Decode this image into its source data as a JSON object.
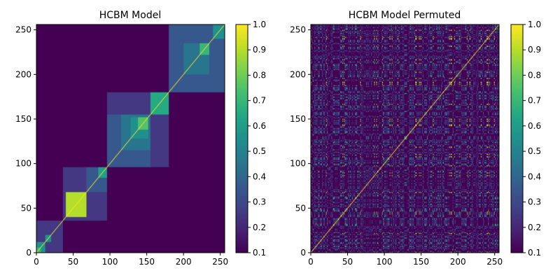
{
  "chart_data": [
    {
      "type": "heatmap",
      "title": "HCBM Model",
      "xlim": [
        0,
        256
      ],
      "ylim": [
        0,
        256
      ],
      "xticks": [
        "0",
        "50",
        "100",
        "150",
        "200",
        "250"
      ],
      "yticks": [
        "0",
        "50",
        "100",
        "150",
        "200",
        "250"
      ],
      "colorbar": {
        "min": 0.1,
        "max": 1.0,
        "ticks": [
          "0.1",
          "0.2",
          "0.3",
          "0.4",
          "0.5",
          "0.6",
          "0.7",
          "0.8",
          "0.9",
          "1.0"
        ]
      },
      "colormap": "viridis",
      "diagonal_value": 1.0,
      "background_value": 0.1,
      "blocks": [
        {
          "start": 0,
          "end": 36,
          "value": 0.25
        },
        {
          "start": 0,
          "end": 12,
          "value": 0.55
        },
        {
          "start": 0,
          "end": 6,
          "value": 0.7
        },
        {
          "start": 12,
          "end": 20,
          "value": 0.55
        },
        {
          "start": 36,
          "end": 96,
          "value": 0.25
        },
        {
          "start": 40,
          "end": 68,
          "value": 0.9
        },
        {
          "start": 68,
          "end": 96,
          "value": 0.35
        },
        {
          "start": 84,
          "end": 96,
          "value": 0.6
        },
        {
          "start": 96,
          "end": 180,
          "value": 0.25
        },
        {
          "start": 96,
          "end": 155,
          "value": 0.35
        },
        {
          "start": 115,
          "end": 155,
          "value": 0.45
        },
        {
          "start": 128,
          "end": 152,
          "value": 0.55
        },
        {
          "start": 138,
          "end": 152,
          "value": 0.75
        },
        {
          "start": 155,
          "end": 180,
          "value": 0.35
        },
        {
          "start": 155,
          "end": 180,
          "value": 0.65
        },
        {
          "start": 180,
          "end": 256,
          "value": 0.25
        },
        {
          "start": 180,
          "end": 256,
          "value": 0.35
        },
        {
          "start": 200,
          "end": 235,
          "value": 0.45
        },
        {
          "start": 222,
          "end": 235,
          "value": 0.7
        },
        {
          "start": 240,
          "end": 256,
          "value": 0.55
        }
      ]
    },
    {
      "type": "heatmap",
      "title": "HCBM Model Permuted",
      "xlim": [
        0,
        256
      ],
      "ylim": [
        0,
        256
      ],
      "xticks": [
        "0",
        "50",
        "100",
        "150",
        "200",
        "250"
      ],
      "yticks": [
        "0",
        "50",
        "100",
        "150",
        "200",
        "250"
      ],
      "colorbar": {
        "min": 0.1,
        "max": 1.0,
        "ticks": [
          "0.1",
          "0.2",
          "0.3",
          "0.4",
          "0.5",
          "0.6",
          "0.7",
          "0.8",
          "0.9",
          "1.0"
        ]
      },
      "colormap": "viridis",
      "diagonal_value": 1.0,
      "background_value": 0.1
    }
  ]
}
